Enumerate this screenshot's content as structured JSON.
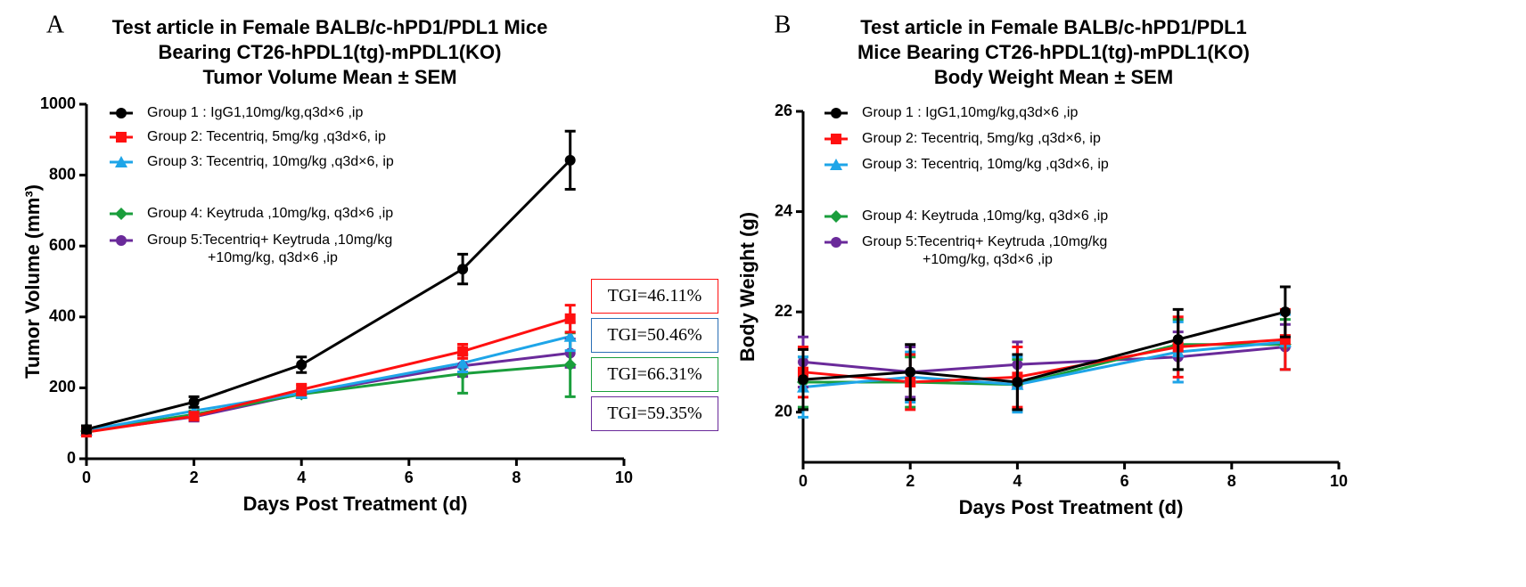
{
  "chart_data": [
    {
      "type": "line",
      "panel_label": "A",
      "title": [
        "Test article in Female BALB/c-hPD1/PDL1 Mice",
        "Bearing CT26-hPDL1(tg)-mPDL1(KO)",
        "Tumor Volume Mean ± SEM"
      ],
      "xlabel": "Days Post Treatment (d)",
      "ylabel": "Tumor Volume (mm³)",
      "x": [
        0,
        2,
        4,
        7,
        9
      ],
      "xlim": [
        0,
        10
      ],
      "xticks": [
        0,
        2,
        4,
        6,
        8,
        10
      ],
      "ylim": [
        0,
        1000
      ],
      "yticks": [
        0,
        200,
        400,
        600,
        800,
        1000
      ],
      "series": [
        {
          "name": "Group 1 : IgG1,10mg/kg,q3d×6 ,ip",
          "color": "#000000",
          "marker": "circle",
          "values": [
            83,
            160,
            265,
            535,
            842
          ],
          "errors": [
            10,
            15,
            22,
            42,
            82
          ]
        },
        {
          "name": "Group 2: Tecentriq, 5mg/kg ,q3d×6, ip",
          "color": "#ff1010",
          "marker": "square",
          "values": [
            75,
            120,
            195,
            303,
            395
          ],
          "errors": [
            8,
            10,
            15,
            20,
            38
          ]
        },
        {
          "name": "Group 3: Tecentriq, 10mg/kg ,q3d×6, ip",
          "color": "#1ea5e8",
          "marker": "triangle",
          "values": [
            80,
            135,
            185,
            270,
            345
          ],
          "errors": [
            8,
            10,
            12,
            25,
            40
          ]
        },
        {
          "name": "Group 4: Keytruda ,10mg/kg, q3d×6 ,ip",
          "color": "#1a9e3c",
          "marker": "diamond",
          "values": [
            78,
            125,
            182,
            240,
            265
          ],
          "errors": [
            8,
            10,
            10,
            55,
            90
          ]
        },
        {
          "name": "Group 5:Tecentriq+ Keytruda ,10mg/kg\n+10mg/kg, q3d×6 ,ip",
          "color": "#6a2a9a",
          "marker": "circle",
          "values": [
            77,
            118,
            183,
            262,
            298
          ],
          "errors": [
            8,
            12,
            10,
            30,
            40
          ]
        }
      ],
      "annotations": [
        {
          "text": "TGI=46.11%",
          "color": "#ff1010"
        },
        {
          "text": "TGI=50.46%",
          "color": "#2a6fb5"
        },
        {
          "text": "TGI=66.31%",
          "color": "#1a9e3c"
        },
        {
          "text": "TGI=59.35%",
          "color": "#6a2a9a"
        }
      ]
    },
    {
      "type": "line",
      "panel_label": "B",
      "title": [
        "Test article in Female BALB/c-hPD1/PDL1",
        "Mice Bearing CT26-hPDL1(tg)-mPDL1(KO)",
        "Body Weight  Mean ± SEM"
      ],
      "xlabel": "Days Post Treatment (d)",
      "ylabel": "Body Weight (g)",
      "x": [
        0,
        2,
        4,
        7,
        9
      ],
      "xlim": [
        0,
        10
      ],
      "xticks": [
        0,
        2,
        4,
        6,
        8,
        10
      ],
      "ylim": [
        19,
        26
      ],
      "yticks": [
        20,
        22,
        24,
        26
      ],
      "series": [
        {
          "name": "Group 1 : IgG1,10mg/kg,q3d×6 ,ip",
          "color": "#000000",
          "marker": "circle",
          "values": [
            20.65,
            20.8,
            20.6,
            21.45,
            22.0
          ],
          "errors": [
            0.6,
            0.55,
            0.55,
            0.6,
            0.5
          ]
        },
        {
          "name": "Group 2: Tecentriq, 5mg/kg ,q3d×6, ip",
          "color": "#ff1010",
          "marker": "square",
          "values": [
            20.8,
            20.6,
            20.7,
            21.3,
            21.45
          ],
          "errors": [
            0.5,
            0.55,
            0.6,
            0.6,
            0.6
          ]
        },
        {
          "name": "Group 3: Tecentriq, 10mg/kg ,q3d×6, ip",
          "color": "#1ea5e8",
          "marker": "triangle",
          "values": [
            20.5,
            20.7,
            20.55,
            21.2,
            21.4
          ],
          "errors": [
            0.6,
            0.5,
            0.55,
            0.6,
            0.55
          ]
        },
        {
          "name": "Group 4: Keytruda ,10mg/kg, q3d×6 ,ip",
          "color": "#1a9e3c",
          "marker": "diamond",
          "values": [
            20.6,
            20.6,
            20.55,
            21.35,
            21.35
          ],
          "errors": [
            0.5,
            0.5,
            0.5,
            0.5,
            0.5
          ]
        },
        {
          "name": "Group 5:Tecentriq+ Keytruda ,10mg/kg\n+10mg/kg, q3d×6 ,ip",
          "color": "#6a2a9a",
          "marker": "circle",
          "values": [
            21.0,
            20.8,
            20.95,
            21.1,
            21.3
          ],
          "errors": [
            0.5,
            0.5,
            0.45,
            0.5,
            0.45
          ]
        }
      ]
    }
  ]
}
